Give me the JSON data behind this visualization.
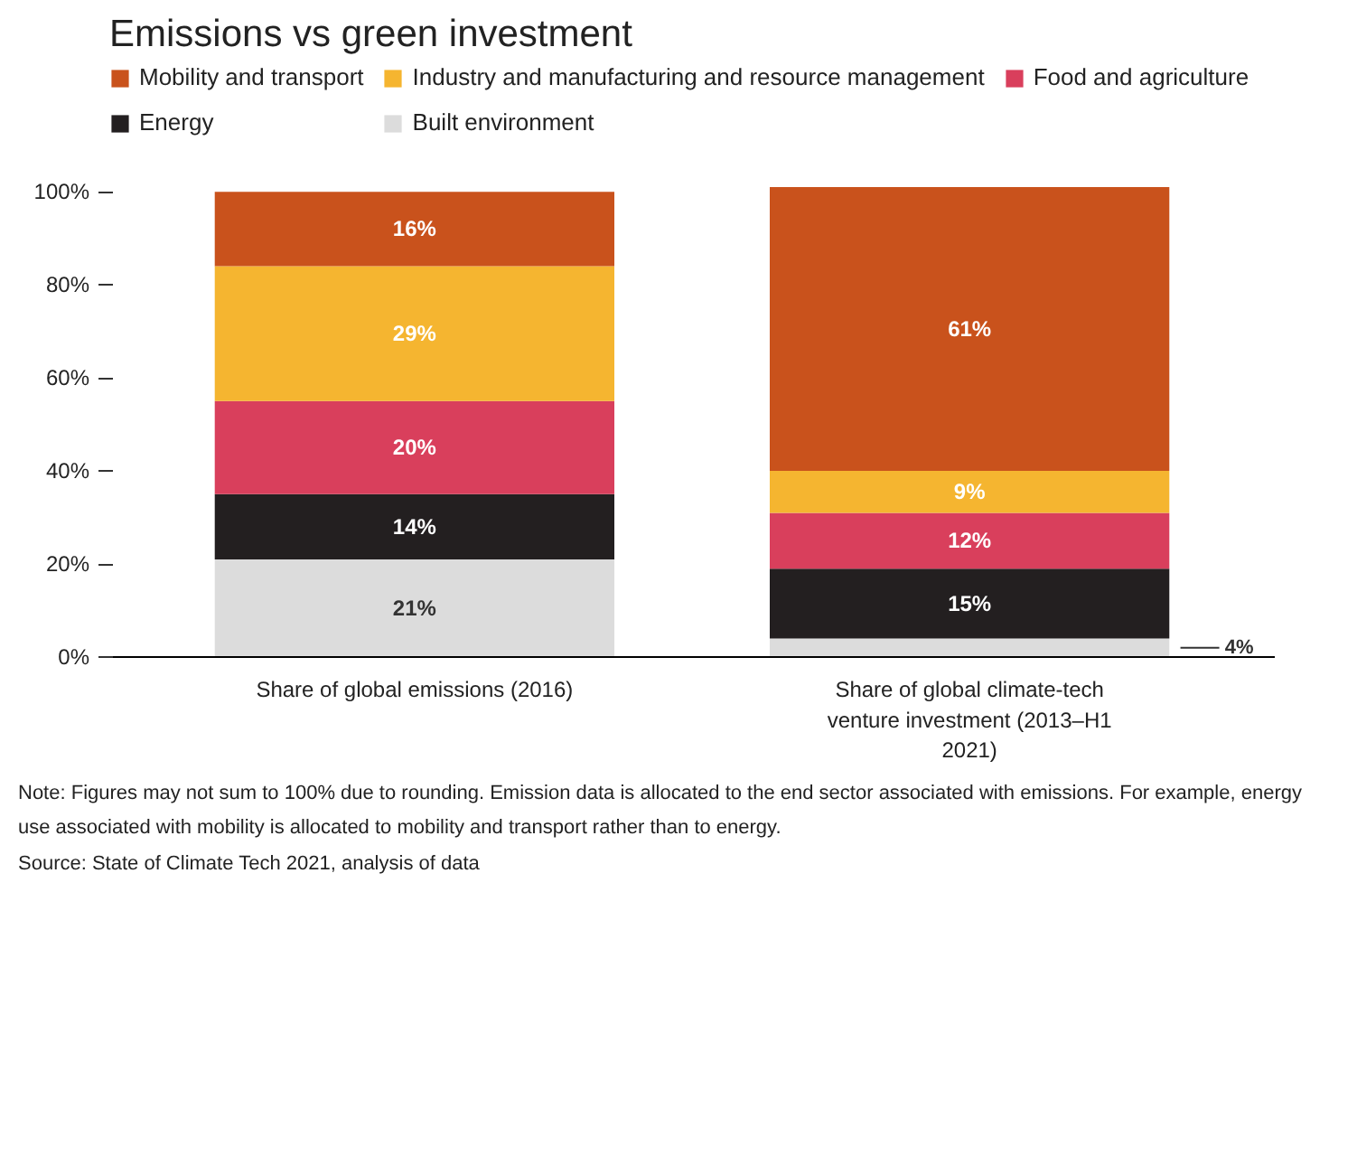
{
  "chart_data": {
    "type": "bar",
    "stacked": true,
    "title": "Emissions vs green investment",
    "categories": [
      "Share of global emissions (2016)",
      "Share of global climate-tech venture investment (2013–H1 2021)"
    ],
    "series": [
      {
        "name": "Built environment",
        "color": "#dcdcdc",
        "values": [
          21,
          4
        ],
        "value_labels": [
          "21%",
          "4%"
        ]
      },
      {
        "name": "Energy",
        "color": "#231f20",
        "values": [
          14,
          15
        ],
        "value_labels": [
          "14%",
          "15%"
        ]
      },
      {
        "name": "Food and agriculture",
        "color": "#d93f5c",
        "values": [
          20,
          12
        ],
        "value_labels": [
          "20%",
          "12%"
        ]
      },
      {
        "name": "Industry and manufacturing and resource management",
        "color": "#f5b530",
        "values": [
          29,
          9
        ],
        "value_labels": [
          "29%",
          "9%"
        ]
      },
      {
        "name": "Mobility and transport",
        "color": "#c9521c",
        "values": [
          16,
          61
        ],
        "value_labels": [
          "16%",
          "61%"
        ]
      }
    ],
    "ylim": [
      0,
      101
    ],
    "yticks": [
      {
        "value": 0,
        "label": "0%"
      },
      {
        "value": 20,
        "label": "20%"
      },
      {
        "value": 40,
        "label": "40%"
      },
      {
        "value": 60,
        "label": "60%"
      },
      {
        "value": 80,
        "label": "80%"
      },
      {
        "value": 100,
        "label": "100%"
      }
    ],
    "legend": "top",
    "annotations": [
      "Note: Figures may not sum to 100% due to rounding. Emission data is allocated to the end sector associated with emissions. For example, energy use associated with mobility is allocated to mobility and transport rather than to energy.",
      "Source: State of Climate Tech 2021, analysis of data"
    ]
  }
}
